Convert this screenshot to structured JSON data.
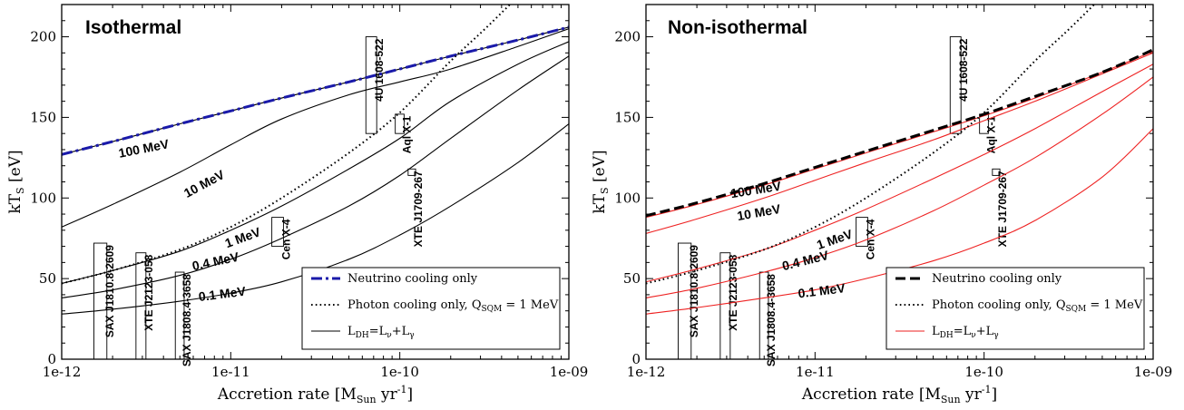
{
  "chart_data": [
    {
      "type": "line",
      "title": "Isothermal",
      "xlabel": "Accretion rate [M",
      "xlabel_sub": "Sun",
      "xlabel_tail": " yr",
      "xlabel_sup": "-1",
      "xlabel_close": "]",
      "ylabel": "kT",
      "ylabel_sub": "S",
      "ylabel_tail": " [eV]",
      "xscale": "log",
      "xlim": [
        1e-12,
        1e-09
      ],
      "ylim": [
        0,
        220
      ],
      "xticks": [
        1e-12,
        1e-11,
        1e-10,
        1e-09
      ],
      "xtick_labels": [
        "1e-12",
        "1e-11",
        "1e-10",
        "1e-09"
      ],
      "yticks": [
        0,
        50,
        100,
        150,
        200
      ],
      "ytick_labels": [
        "0",
        "50",
        "100",
        "150",
        "200"
      ],
      "legend_position": "bottom-right",
      "legend": [
        {
          "style": "dashdot",
          "color": "#1a1aaa",
          "text": "Neutrino cooling only"
        },
        {
          "style": "dotted",
          "color": "#000000",
          "text": "Photon cooling only, Q",
          "sub": "SQM",
          "tail": " = 1 MeV"
        },
        {
          "style": "solid",
          "color": "#000000",
          "text": "L",
          "sub": "DH",
          "tail": "=L",
          "sub2": "ν",
          "tail2": "+L",
          "sub3": "γ"
        }
      ],
      "series": [
        {
          "style": "solid",
          "color": "#000000",
          "label": "100 MeV",
          "label_at": [
            2.2e-12,
            125
          ],
          "label_rot": -11,
          "x": [
            1e-12,
            2e-12,
            5e-12,
            1e-11,
            2e-11,
            5e-11,
            1e-10,
            2e-10,
            5e-10,
            1e-09
          ],
          "y": [
            127,
            135,
            146,
            154,
            162,
            172,
            180,
            188,
            198,
            206
          ]
        },
        {
          "style": "solid",
          "color": "#000000",
          "label": "10 MeV",
          "label_at": [
            5.5e-12,
            100
          ],
          "label_rot": -28,
          "x": [
            1e-12,
            2e-12,
            5e-12,
            1e-11,
            2e-11,
            5e-11,
            1e-10,
            2e-10,
            5e-10,
            1e-09
          ],
          "y": [
            82,
            96,
            116,
            133,
            149,
            164,
            172,
            180,
            194,
            205
          ]
        },
        {
          "style": "solid",
          "color": "#000000",
          "label": "1 MeV",
          "label_at": [
            9.5e-12,
            69
          ],
          "label_rot": -20,
          "x": [
            1e-12,
            2e-12,
            5e-12,
            1e-11,
            2e-11,
            5e-11,
            1e-10,
            2e-10,
            5e-10,
            1e-09
          ],
          "y": [
            47,
            55,
            67,
            80,
            95,
            118,
            137,
            160,
            183,
            197
          ]
        },
        {
          "style": "solid",
          "color": "#000000",
          "label": "0.4 MeV",
          "label_at": [
            6e-12,
            55
          ],
          "label_rot": -12,
          "x": [
            1e-12,
            2e-12,
            5e-12,
            1e-11,
            2e-11,
            5e-11,
            1e-10,
            2e-10,
            5e-10,
            1e-09
          ],
          "y": [
            38,
            43,
            52,
            62,
            75,
            95,
            114,
            137,
            167,
            188
          ]
        },
        {
          "style": "solid",
          "color": "#000000",
          "label": "0.1 MeV",
          "label_at": [
            6.5e-12,
            36
          ],
          "label_rot": -7,
          "x": [
            1e-12,
            2e-12,
            5e-12,
            1e-11,
            2e-11,
            5e-11,
            1e-10,
            2e-10,
            5e-10,
            1e-09
          ],
          "y": [
            28,
            31,
            36,
            41,
            48,
            62,
            77,
            95,
            122,
            146
          ]
        },
        {
          "style": "dashdot",
          "color": "#1a1aaa",
          "label": "",
          "x": [
            1e-12,
            2e-12,
            5e-12,
            1e-11,
            2e-11,
            5e-11,
            1e-10,
            2e-10,
            5e-10,
            1e-09
          ],
          "y": [
            127,
            135,
            146,
            154,
            162,
            172,
            180,
            188,
            198,
            206
          ]
        },
        {
          "style": "dotted",
          "color": "#000000",
          "label": "",
          "x": [
            1e-12,
            2e-12,
            5e-12,
            1e-11,
            2e-11,
            5e-11,
            1e-10,
            2e-10,
            3.2e-10,
            5e-10
          ],
          "y": [
            47,
            55,
            68,
            82,
            100,
            128,
            153,
            185,
            205,
            225
          ]
        }
      ],
      "sources": [
        {
          "name": "SAX J1810.8-2609",
          "x_min": 1.55e-12,
          "x_max": 1.85e-12,
          "y_min": 0,
          "y_max": 72
        },
        {
          "name": "XTE J2123-058",
          "x_min": 2.75e-12,
          "x_max": 3.15e-12,
          "y_min": 0,
          "y_max": 66
        },
        {
          "name": "SAX J1808.4-3658",
          "x_min": 4.7e-12,
          "x_max": 5.3e-12,
          "y_min": 0,
          "y_max": 54
        },
        {
          "name": "Cen X-4",
          "x_min": 1.75e-11,
          "x_max": 2.05e-11,
          "y_min": 70,
          "y_max": 88
        },
        {
          "name": "4U 1608-522",
          "x_min": 6.3e-11,
          "x_max": 7.3e-11,
          "y_min": 140,
          "y_max": 200
        },
        {
          "name": "Aql X-1",
          "x_min": 9.4e-11,
          "x_max": 1.06e-10,
          "y_min": 140,
          "y_max": 152
        },
        {
          "name": "XTE J1709-267",
          "x_min": 1.12e-10,
          "x_max": 1.24e-10,
          "y_min": 114,
          "y_max": 118
        }
      ]
    },
    {
      "type": "line",
      "title": "Non-isothermal",
      "xlabel": "Accretion rate [M",
      "xlabel_sub": "Sun",
      "xlabel_tail": " yr",
      "xlabel_sup": "-1",
      "xlabel_close": "]",
      "ylabel": "kT",
      "ylabel_sub": "S",
      "ylabel_tail": " [eV]",
      "xscale": "log",
      "xlim": [
        1e-12,
        1e-09
      ],
      "ylim": [
        0,
        220
      ],
      "xticks": [
        1e-12,
        1e-11,
        1e-10,
        1e-09
      ],
      "xtick_labels": [
        "1e-12",
        "1e-11",
        "1e-10",
        "1e-09"
      ],
      "yticks": [
        0,
        50,
        100,
        150,
        200
      ],
      "ytick_labels": [
        "0",
        "50",
        "100",
        "150",
        "200"
      ],
      "legend_position": "bottom-right",
      "legend": [
        {
          "style": "dashed",
          "color": "#000000",
          "text": "Neutrino cooling only"
        },
        {
          "style": "dotted",
          "color": "#000000",
          "text": "Photon cooling only, Q",
          "sub": "SQM",
          "tail": " = 1 MeV"
        },
        {
          "style": "solid",
          "color": "#ee2222",
          "text": "L",
          "sub": "DH",
          "tail": "=L",
          "sub2": "ν",
          "tail2": "+L",
          "sub3": "γ"
        }
      ],
      "series": [
        {
          "style": "solid",
          "color": "#ee2222",
          "label": "100 MeV",
          "label_at": [
            3.2e-12,
            100
          ],
          "label_rot": -9,
          "x": [
            1e-12,
            2e-12,
            5e-12,
            1e-11,
            2e-11,
            5e-11,
            1e-10,
            2e-10,
            5e-10,
            1e-09
          ],
          "y": [
            88,
            96,
            108,
            118,
            128,
            141,
            151,
            162,
            178,
            191
          ]
        },
        {
          "style": "solid",
          "color": "#ee2222",
          "label": "10 MeV",
          "label_at": [
            3.5e-12,
            86
          ],
          "label_rot": -10,
          "x": [
            1e-12,
            2e-12,
            5e-12,
            1e-11,
            2e-11,
            5e-11,
            1e-10,
            2e-10,
            5e-10,
            1e-09
          ],
          "y": [
            78,
            87,
            100,
            111,
            122,
            136,
            148,
            160,
            177,
            190
          ]
        },
        {
          "style": "solid",
          "color": "#ee2222",
          "label": "1 MeV",
          "label_at": [
            1.05e-11,
            68
          ],
          "label_rot": -19,
          "x": [
            1e-12,
            2e-12,
            5e-12,
            1e-11,
            2e-11,
            5e-11,
            1e-10,
            2e-10,
            5e-10,
            1e-09
          ],
          "y": [
            48,
            56,
            68,
            80,
            93,
            112,
            127,
            143,
            166,
            183
          ]
        },
        {
          "style": "solid",
          "color": "#ee2222",
          "label": "0.4 MeV",
          "label_at": [
            6.5e-12,
            55
          ],
          "label_rot": -14,
          "x": [
            1e-12,
            2e-12,
            5e-12,
            1e-11,
            2e-11,
            5e-11,
            1e-10,
            2e-10,
            5e-10,
            1e-09
          ],
          "y": [
            38,
            44,
            54,
            63,
            74,
            92,
            108,
            125,
            152,
            175
          ]
        },
        {
          "style": "solid",
          "color": "#ee2222",
          "label": "0.1 MeV",
          "label_at": [
            8e-12,
            38
          ],
          "label_rot": -7,
          "x": [
            1e-12,
            2e-12,
            5e-12,
            1e-11,
            2e-11,
            5e-11,
            1e-10,
            2e-10,
            5e-10,
            1e-09
          ],
          "y": [
            28,
            32,
            38,
            43,
            50,
            61,
            72,
            86,
            113,
            143
          ]
        },
        {
          "style": "dashed",
          "color": "#000000",
          "label": "",
          "x": [
            1e-12,
            2e-12,
            5e-12,
            1e-11,
            2e-11,
            5e-11,
            1e-10,
            2e-10,
            5e-10,
            1e-09
          ],
          "y": [
            89,
            97,
            109,
            119,
            129,
            142,
            152,
            163,
            178,
            192
          ]
        },
        {
          "style": "dotted",
          "color": "#000000",
          "label": "",
          "x": [
            1e-12,
            2e-12,
            5e-12,
            1e-11,
            2e-11,
            5e-11,
            1e-10,
            2e-10,
            3.2e-10,
            5e-10
          ],
          "y": [
            47,
            55,
            68,
            82,
            100,
            128,
            153,
            185,
            205,
            225
          ]
        }
      ],
      "sources": [
        {
          "name": "SAX J1810.8-2609",
          "x_min": 1.55e-12,
          "x_max": 1.85e-12,
          "y_min": 0,
          "y_max": 72
        },
        {
          "name": "XTE J2123-058",
          "x_min": 2.75e-12,
          "x_max": 3.15e-12,
          "y_min": 0,
          "y_max": 66
        },
        {
          "name": "SAX J1808.4-3658",
          "x_min": 4.7e-12,
          "x_max": 5.3e-12,
          "y_min": 0,
          "y_max": 54
        },
        {
          "name": "Cen X-4",
          "x_min": 1.75e-11,
          "x_max": 2.05e-11,
          "y_min": 70,
          "y_max": 88
        },
        {
          "name": "4U 1608-522",
          "x_min": 6.3e-11,
          "x_max": 7.3e-11,
          "y_min": 140,
          "y_max": 200
        },
        {
          "name": "Aql X-1",
          "x_min": 9.4e-11,
          "x_max": 1.06e-10,
          "y_min": 140,
          "y_max": 152
        },
        {
          "name": "XTE J1709-267",
          "x_min": 1.12e-10,
          "x_max": 1.24e-10,
          "y_min": 114,
          "y_max": 118
        }
      ]
    }
  ]
}
